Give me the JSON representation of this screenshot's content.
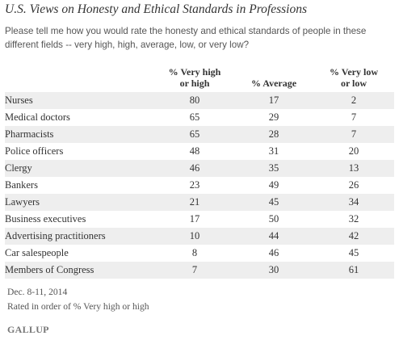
{
  "chart_data": {
    "type": "table",
    "title": "U.S. Views on Honesty and Ethical Standards in Professions",
    "subtitle": "Please tell me how you would rate the honesty and ethical standards of people in these different fields -- very high, high, average, low, or very low?",
    "columns": [
      {
        "line1": "% Very high",
        "line2": "or high"
      },
      {
        "line1": "",
        "line2": "% Average"
      },
      {
        "line1": "% Very low",
        "line2": "or low"
      }
    ],
    "rows": [
      {
        "profession": "Nurses",
        "very_high_or_high": "80",
        "average": "17",
        "very_low_or_low": "2"
      },
      {
        "profession": "Medical doctors",
        "very_high_or_high": "65",
        "average": "29",
        "very_low_or_low": "7"
      },
      {
        "profession": "Pharmacists",
        "very_high_or_high": "65",
        "average": "28",
        "very_low_or_low": "7"
      },
      {
        "profession": "Police officers",
        "very_high_or_high": "48",
        "average": "31",
        "very_low_or_low": "20"
      },
      {
        "profession": "Clergy",
        "very_high_or_high": "46",
        "average": "35",
        "very_low_or_low": "13"
      },
      {
        "profession": "Bankers",
        "very_high_or_high": "23",
        "average": "49",
        "very_low_or_low": "26"
      },
      {
        "profession": "Lawyers",
        "very_high_or_high": "21",
        "average": "45",
        "very_low_or_low": "34"
      },
      {
        "profession": "Business executives",
        "very_high_or_high": "17",
        "average": "50",
        "very_low_or_low": "32"
      },
      {
        "profession": "Advertising practitioners",
        "very_high_or_high": "10",
        "average": "44",
        "very_low_or_low": "42"
      },
      {
        "profession": "Car salespeople",
        "very_high_or_high": "8",
        "average": "46",
        "very_low_or_low": "45"
      },
      {
        "profession": "Members of Congress",
        "very_high_or_high": "7",
        "average": "30",
        "very_low_or_low": "61"
      }
    ]
  },
  "footer": {
    "date": "Dec. 8-11, 2014",
    "note": "Rated in order of % Very high or high",
    "logo": "GALLUP"
  },
  "colors": {
    "stripe": "#eeeeee",
    "text": "#333333"
  }
}
